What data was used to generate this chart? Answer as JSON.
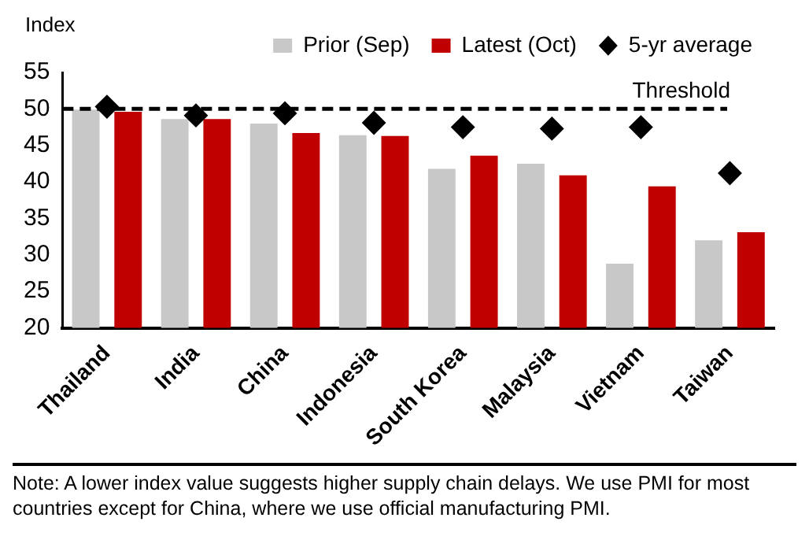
{
  "chart_data": {
    "type": "bar",
    "ylabel": "Index",
    "categories": [
      "Thailand",
      "India",
      "China",
      "Indonesia",
      "South Korea",
      "Malaysia",
      "Vietnam",
      "Taiwan"
    ],
    "series": [
      {
        "name": "Prior (Sep)",
        "color": "#c8c8c8",
        "values": [
          49.9,
          48.6,
          48.0,
          46.4,
          41.8,
          42.5,
          28.8,
          32.0
        ]
      },
      {
        "name": "Latest (Oct)",
        "color": "#c00000",
        "values": [
          49.6,
          48.6,
          46.7,
          46.3,
          43.6,
          40.9,
          39.4,
          33.1
        ]
      },
      {
        "name": "5-yr average",
        "type": "scatter",
        "color": "#000000",
        "marker": "diamond",
        "x": [
          "Thailand",
          "India",
          "China",
          "Indonesia",
          "South Korea",
          "Malaysia",
          "Vietnam",
          "Taiwan"
        ],
        "values": [
          50.3,
          49.1,
          49.4,
          48.1,
          47.5,
          47.3,
          47.5,
          41.2
        ]
      }
    ],
    "ylim": [
      20,
      55
    ],
    "yticks": [
      20,
      25,
      30,
      35,
      40,
      45,
      50,
      55
    ],
    "ref_lines": [
      {
        "axis": "y",
        "value": 50,
        "label": "Threshold",
        "color": "#000000",
        "line_style": "dashed"
      }
    ],
    "legend": "top",
    "annotations": [
      "Note: A lower index value suggests higher supply chain delays. We use PMI for most countries except for China, where we use official manufacturing PMI."
    ]
  }
}
